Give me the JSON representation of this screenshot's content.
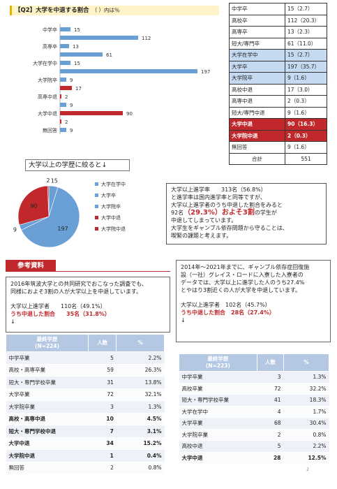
{
  "question_title": "【Q2】大学を中退する割合",
  "question_unit": "（ ）内は％",
  "bar_chart_data": {
    "type": "bar",
    "orientation": "horizontal",
    "categories": [
      "中学卒",
      "",
      "高専卒",
      "",
      "大学在学中",
      "",
      "大学院卒",
      "",
      "高専中退",
      "",
      "大学中退",
      "",
      "無回答"
    ],
    "values": [
      15,
      112,
      13,
      61,
      15,
      197,
      9,
      17,
      2,
      9,
      90,
      2,
      9
    ],
    "colors": [
      "#6a9fd6",
      "#6a9fd6",
      "#6a9fd6",
      "#6a9fd6",
      "#6a9fd6",
      "#6a9fd6",
      "#6a9fd6",
      "#c0282c",
      "#c0282c",
      "#6a9fd6",
      "#c0282c",
      "#c0282c",
      "#6a9fd6"
    ]
  },
  "summary_table": {
    "rows": [
      {
        "label": "中学卒",
        "value": "15（2.7）",
        "style": "plain"
      },
      {
        "label": "高校卒",
        "value": "112（20.3）",
        "style": "plain"
      },
      {
        "label": "高専卒",
        "value": "13（2.3）",
        "style": "plain"
      },
      {
        "label": "短大/専門卒",
        "value": "61（11.0）",
        "style": "plain"
      },
      {
        "label": "大学在学中",
        "value": "15（2.7）",
        "style": "blue"
      },
      {
        "label": "大学卒",
        "value": "197（35.7）",
        "style": "blue"
      },
      {
        "label": "大学院卒",
        "value": "9（1.6）",
        "style": "blue"
      },
      {
        "label": "高校中退",
        "value": "17（3.0）",
        "style": "plain"
      },
      {
        "label": "高専中退",
        "value": "2（0.3）",
        "style": "plain"
      },
      {
        "label": "短大/専門中退",
        "value": "9（1.6）",
        "style": "plain"
      },
      {
        "label": "大学中退",
        "value": "90（16.3）",
        "style": "red"
      },
      {
        "label": "大学院中退",
        "value": "2（0.3）",
        "style": "red"
      },
      {
        "label": "無回答",
        "value": "9（1.6）",
        "style": "plain"
      },
      {
        "label": "合計",
        "value": "551",
        "style": "total"
      }
    ]
  },
  "pie_title": "大学以上の学歴に絞ると↓",
  "chart_data": {
    "type": "pie",
    "slices": [
      {
        "label": "大学在学中",
        "value": 15,
        "color": "#6a9fd6"
      },
      {
        "label": "大学卒",
        "value": 197,
        "color": "#6a9fd6"
      },
      {
        "label": "大学院卒",
        "value": 9,
        "color": "#6a9fd6"
      },
      {
        "label": "大学中退",
        "value": 90,
        "color": "#c0282c"
      },
      {
        "label": "大学院中退",
        "value": 2,
        "color": "#c0282c"
      }
    ],
    "legend_position": "right"
  },
  "note": {
    "line1": "大学以上進学率　　313名（56.8%）",
    "line2": "と進学率は国内進学率と同等ですが、",
    "line3": "大学以上進学者のうち中退した割合をみると",
    "line4_pre": "92名",
    "line4_big": "（29.3%）およそ3割",
    "line4_post": "の学生が",
    "line5": "中退してしまっています。",
    "line6": "大学生をギャンブル依存問題から守ることは、",
    "line7": "喫緊の課題と考えます。"
  },
  "reference_label": "参考資料",
  "study_left": {
    "line1": "2016年筑波大学との共同研究でおこなった調査でも、",
    "line2": "同様におよそ3割の人が大学以上を中退しています。",
    "stat1_label": "大学以上進学者",
    "stat1_value": "110名（49.1%）",
    "stat2_label": "うち中退した割合",
    "stat2_value": "35名（31.8%）",
    "arrow": "↓"
  },
  "study_right": {
    "line1": "2014年～2021年までに、ギャンブル依存症回復施",
    "line2": "設（一社）グレイス・ロードに入寮した入寮者の",
    "line3": "データでは、大学以上に進学した人のうち27.4%",
    "line4": "とやはり3割近くの人が大学を中退しています。",
    "stat1_label": "大学以上進学者",
    "stat1_value": "102名（45.7%）",
    "stat2_label": "うち中退した割合",
    "stat2_value": "28名（27.4%）",
    "arrow": "↓"
  },
  "table_left": {
    "headers": [
      "最終学歴\n(N=224)",
      "人数",
      "%"
    ],
    "rows": [
      {
        "edu": "中学卒業",
        "n": "5",
        "pct": "2.2%",
        "bold": false
      },
      {
        "edu": "高校・高専卒業",
        "n": "59",
        "pct": "26.3%",
        "bold": false
      },
      {
        "edu": "短大・専門学校卒業",
        "n": "31",
        "pct": "13.8%",
        "bold": false
      },
      {
        "edu": "大学卒業",
        "n": "72",
        "pct": "32.1%",
        "bold": false
      },
      {
        "edu": "大学院卒業",
        "n": "3",
        "pct": "1.3%",
        "bold": false
      },
      {
        "edu": "高校・高専中退",
        "n": "10",
        "pct": "4.5%",
        "bold": true
      },
      {
        "edu": "短大・専門学校中退",
        "n": "7",
        "pct": "3.1%",
        "bold": true
      },
      {
        "edu": "大学中退",
        "n": "34",
        "pct": "15.2%",
        "bold": true
      },
      {
        "edu": "大学院中退",
        "n": "1",
        "pct": "0.4%",
        "bold": true
      },
      {
        "edu": "無回答",
        "n": "2",
        "pct": "0.8%",
        "bold": false
      }
    ]
  },
  "table_right": {
    "headers": [
      "最終学歴\n(N=223)",
      "人数",
      "%"
    ],
    "rows": [
      {
        "edu": "中学卒業",
        "n": "3",
        "pct": "1.3%",
        "bold": false
      },
      {
        "edu": "高校卒業",
        "n": "72",
        "pct": "32.2%",
        "bold": false
      },
      {
        "edu": "短大・専門学校卒業",
        "n": "41",
        "pct": "18.3%",
        "bold": false
      },
      {
        "edu": "大学在学中",
        "n": "4",
        "pct": "1.7%",
        "bold": false
      },
      {
        "edu": "大学卒業",
        "n": "68",
        "pct": "30.4%",
        "bold": false
      },
      {
        "edu": "大学院卒業",
        "n": "2",
        "pct": "0.8%",
        "bold": false
      },
      {
        "edu": "高校中退",
        "n": "5",
        "pct": "2.2%",
        "bold": false
      },
      {
        "edu": "大学中退",
        "n": "28",
        "pct": "12.5%",
        "bold": true
      }
    ]
  },
  "page_number": "2"
}
